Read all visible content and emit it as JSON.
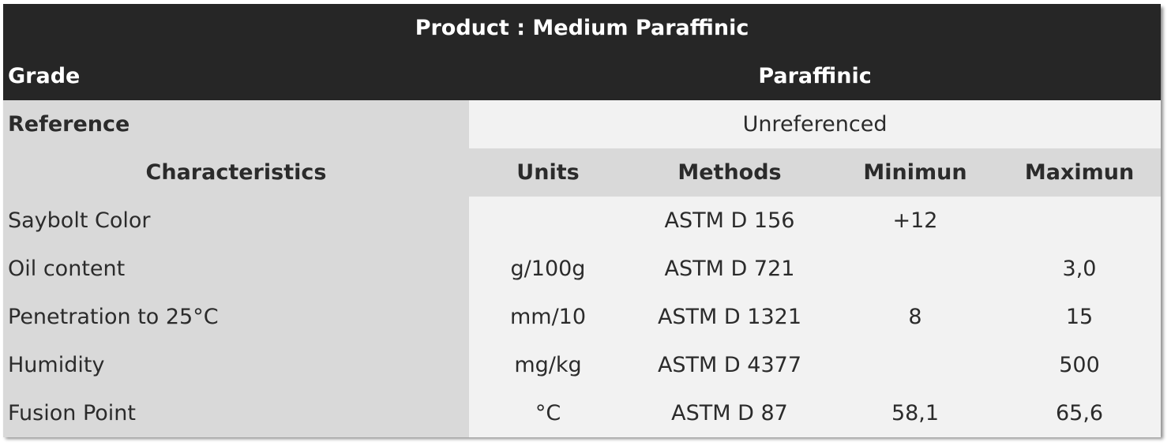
{
  "title": "Product : Medium Paraffinic",
  "grade": {
    "label": "Grade",
    "value": "Paraffinic"
  },
  "reference": {
    "label": "Reference",
    "value": "Unreferenced"
  },
  "headers": [
    "Characteristics",
    "Units",
    "Methods",
    "Minimun",
    "Maximun"
  ],
  "rows": [
    {
      "name": "Saybolt Color",
      "unit": "",
      "method": "ASTM D 156",
      "min": "+12",
      "max": ""
    },
    {
      "name": "Oil content",
      "unit": "g/100g",
      "method": "ASTM D 721",
      "min": "",
      "max": "3,0"
    },
    {
      "name": "Penetration to 25°C",
      "unit": "mm/10",
      "method": "ASTM D 1321",
      "min": "8",
      "max": "15"
    },
    {
      "name": "Humidity",
      "unit": "mg/kg",
      "method": "ASTM D 4377",
      "min": "",
      "max": "500"
    },
    {
      "name": "Fusion Point",
      "unit": "°C",
      "method": "ASTM D 87",
      "min": "58,1",
      "max": "65,6"
    }
  ]
}
